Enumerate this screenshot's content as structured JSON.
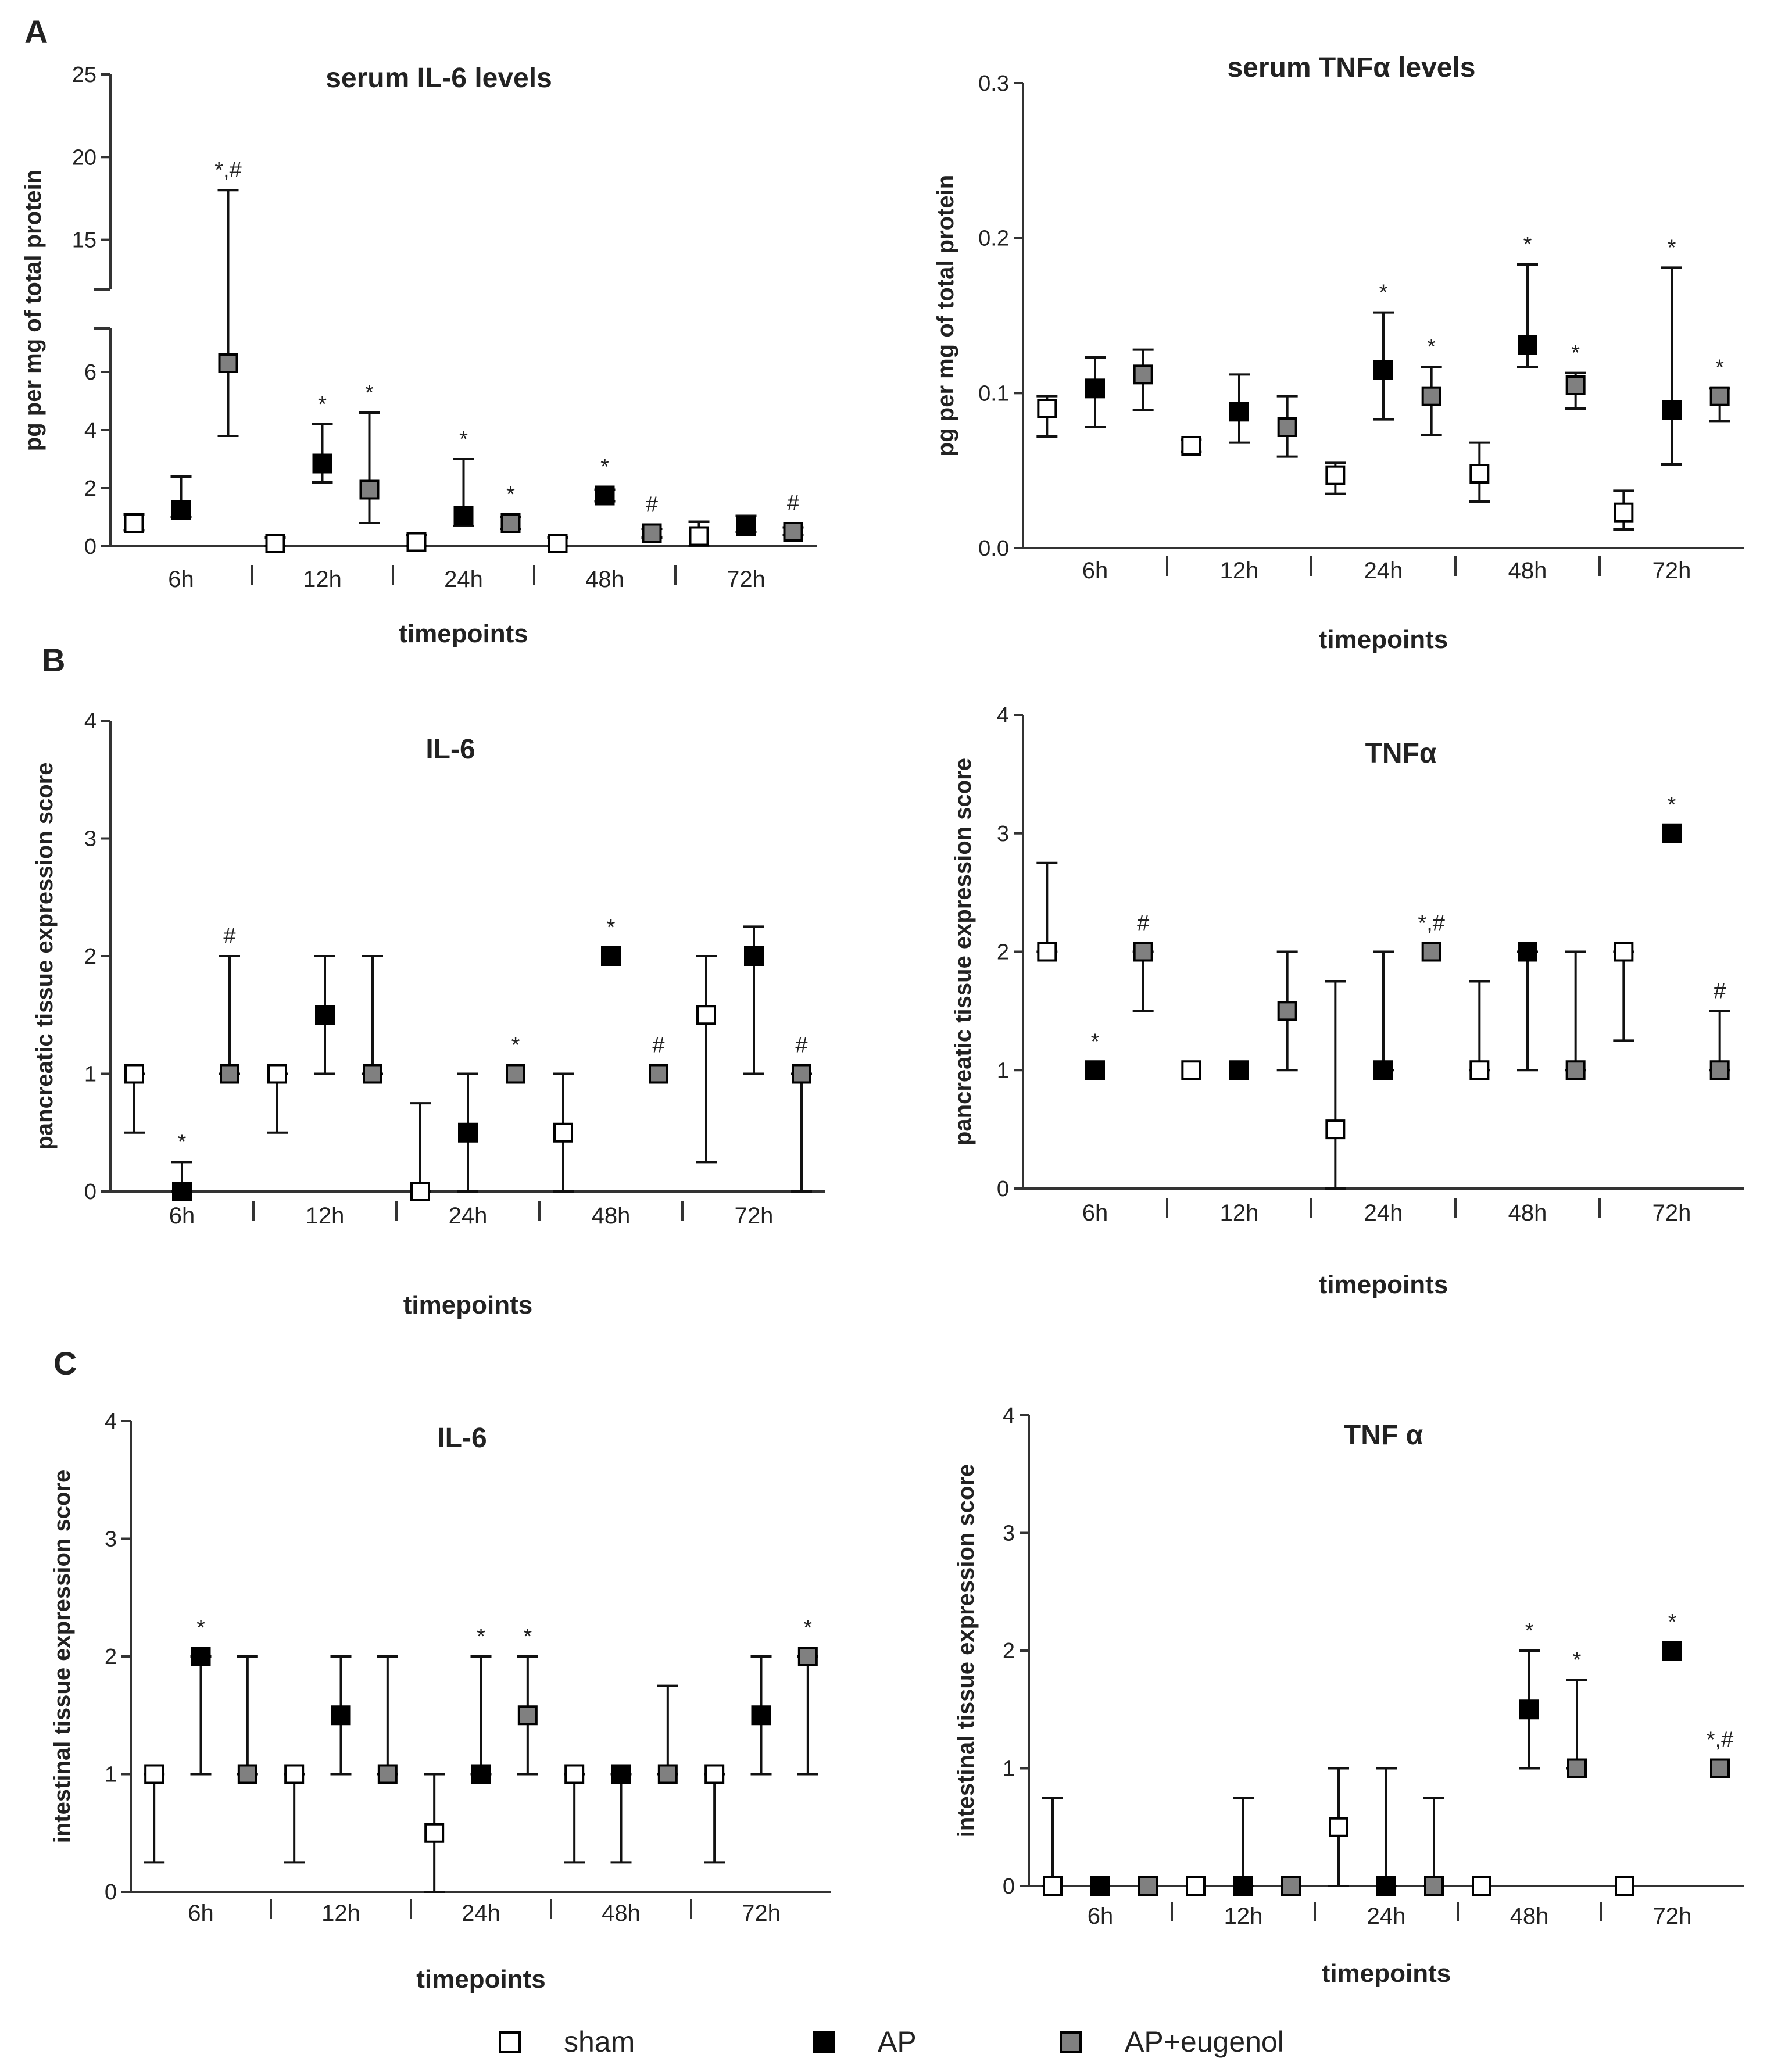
{
  "figure": {
    "panel_letters": [
      "A",
      "B",
      "C"
    ],
    "legend": {
      "entries": [
        {
          "label": "sham",
          "color": "#ffffff"
        },
        {
          "label": "AP",
          "color": "#000000"
        },
        {
          "label": "AP+eugenol",
          "color": "#808080"
        }
      ]
    }
  },
  "chart_data": [
    {
      "type": "scatter",
      "title": "serum IL-6 levels",
      "ylabel": "pg per mg of total protein",
      "xlabel": "timepoints",
      "categories": [
        "6h",
        "12h",
        "24h",
        "48h",
        "72h"
      ],
      "ylim": [
        0,
        25
      ],
      "axis_break": {
        "lower": [
          0,
          7.5
        ],
        "upper": [
          12,
          25
        ]
      },
      "yticks_lower": [
        "0",
        "2",
        "4",
        "6"
      ],
      "yticks_upper": [
        "15",
        "20",
        "25"
      ],
      "series": [
        {
          "name": "sham",
          "color": "#ffffff",
          "values": [
            0.8,
            0.1,
            0.15,
            0.1,
            0.35
          ],
          "error_low": [
            0.55,
            0.0,
            0.0,
            0.0,
            0.0
          ],
          "error_high": [
            1.1,
            0.3,
            0.4,
            0.3,
            0.85
          ],
          "annotations": [
            "",
            "",
            "",
            "",
            ""
          ]
        },
        {
          "name": "AP",
          "color": "#000000",
          "values": [
            1.25,
            2.85,
            1.05,
            1.75,
            0.7
          ],
          "error_low": [
            1.0,
            2.2,
            0.7,
            1.55,
            0.5
          ],
          "error_high": [
            2.4,
            4.2,
            3.0,
            1.95,
            1.05
          ],
          "annotations": [
            "",
            "*",
            "*",
            "*",
            ""
          ]
        },
        {
          "name": "AP+eugenol",
          "color": "#808080",
          "values": [
            6.3,
            1.95,
            0.8,
            0.45,
            0.5
          ],
          "error_low": [
            3.8,
            0.8,
            0.6,
            0.3,
            0.4
          ],
          "error_high": [
            18.0,
            4.6,
            1.0,
            0.6,
            0.65
          ],
          "annotations": [
            "*,#",
            "*",
            "*",
            "#",
            "#"
          ]
        }
      ]
    },
    {
      "type": "scatter",
      "title": "serum TNFα levels",
      "ylabel": "pg per mg of total protein",
      "xlabel": "timepoints",
      "categories": [
        "6h",
        "12h",
        "24h",
        "48h",
        "72h"
      ],
      "ylim": [
        0,
        0.3
      ],
      "yticks": [
        "0.0",
        "0.1",
        "0.2",
        "0.3"
      ],
      "series": [
        {
          "name": "sham",
          "color": "#ffffff",
          "values": [
            0.09,
            0.066,
            0.047,
            0.048,
            0.023
          ],
          "error_low": [
            0.072,
            0.062,
            0.035,
            0.03,
            0.012
          ],
          "error_high": [
            0.098,
            0.07,
            0.055,
            0.068,
            0.037
          ],
          "annotations": [
            "",
            "",
            "",
            "",
            ""
          ]
        },
        {
          "name": "AP",
          "color": "#000000",
          "values": [
            0.103,
            0.088,
            0.115,
            0.131,
            0.089
          ],
          "error_low": [
            0.078,
            0.068,
            0.083,
            0.117,
            0.054
          ],
          "error_high": [
            0.123,
            0.112,
            0.152,
            0.183,
            0.181
          ],
          "annotations": [
            "",
            "",
            "*",
            "*",
            "*"
          ]
        },
        {
          "name": "AP+eugenol",
          "color": "#808080",
          "values": [
            0.112,
            0.078,
            0.098,
            0.105,
            0.098
          ],
          "error_low": [
            0.089,
            0.059,
            0.073,
            0.09,
            0.082
          ],
          "error_high": [
            0.128,
            0.098,
            0.117,
            0.113,
            0.103
          ],
          "annotations": [
            "",
            "",
            "*",
            "*",
            "*"
          ]
        }
      ]
    },
    {
      "type": "scatter",
      "title": "IL-6",
      "ylabel": "pancreatic tissue expression score",
      "xlabel": "timepoints",
      "categories": [
        "6h",
        "12h",
        "24h",
        "48h",
        "72h"
      ],
      "ylim": [
        0,
        4
      ],
      "yticks": [
        "0",
        "1",
        "2",
        "3",
        "4"
      ],
      "series": [
        {
          "name": "sham",
          "color": "#ffffff",
          "values": [
            1,
            1,
            0,
            0.5,
            1.5
          ],
          "error_low": [
            0.5,
            0.5,
            0,
            0,
            0.25
          ],
          "error_high": [
            1,
            1,
            0.75,
            1,
            2
          ],
          "annotations": [
            "",
            "",
            "",
            "",
            ""
          ]
        },
        {
          "name": "AP",
          "color": "#000000",
          "values": [
            0,
            1.5,
            0.5,
            2,
            2
          ],
          "error_low": [
            0,
            1,
            0,
            2,
            1
          ],
          "error_high": [
            0.25,
            2,
            1,
            2,
            2.25
          ],
          "annotations": [
            "*",
            "",
            "",
            "*",
            ""
          ]
        },
        {
          "name": "AP+eugenol",
          "color": "#808080",
          "values": [
            1,
            1,
            1,
            1,
            1
          ],
          "error_low": [
            1,
            1,
            1,
            1,
            0
          ],
          "error_high": [
            2,
            2,
            1,
            1,
            1
          ],
          "annotations": [
            "#",
            "",
            "*",
            "#",
            "#"
          ]
        }
      ]
    },
    {
      "type": "scatter",
      "title": "TNFα",
      "ylabel": "pancreatic tissue expression score",
      "xlabel": "timepoints",
      "categories": [
        "6h",
        "12h",
        "24h",
        "48h",
        "72h"
      ],
      "ylim": [
        0,
        4
      ],
      "yticks": [
        "0",
        "1",
        "2",
        "3",
        "4"
      ],
      "series": [
        {
          "name": "sham",
          "color": "#ffffff",
          "values": [
            2,
            1,
            0.5,
            1,
            2
          ],
          "error_low": [
            2,
            1,
            0,
            1,
            1.25
          ],
          "error_high": [
            2.75,
            1,
            1.75,
            1.75,
            2
          ],
          "annotations": [
            "",
            "",
            "",
            "",
            ""
          ]
        },
        {
          "name": "AP",
          "color": "#000000",
          "values": [
            1,
            1,
            1,
            2,
            3
          ],
          "error_low": [
            1,
            1,
            1,
            1,
            3
          ],
          "error_high": [
            1,
            1,
            2,
            2,
            3
          ],
          "annotations": [
            "*",
            "",
            "",
            "",
            "*"
          ]
        },
        {
          "name": "AP+eugenol",
          "color": "#808080",
          "values": [
            2,
            1.5,
            2,
            1,
            1
          ],
          "error_low": [
            1.5,
            1,
            2,
            1,
            1
          ],
          "error_high": [
            2,
            2,
            2,
            2,
            1.5
          ],
          "annotations": [
            "#",
            "",
            "*,#",
            "",
            "#"
          ]
        }
      ]
    },
    {
      "type": "scatter",
      "title": "IL-6",
      "ylabel": "intestinal tissue expression score",
      "xlabel": "timepoints",
      "categories": [
        "6h",
        "12h",
        "24h",
        "48h",
        "72h"
      ],
      "ylim": [
        0,
        4
      ],
      "yticks": [
        "0",
        "1",
        "2",
        "3",
        "4"
      ],
      "series": [
        {
          "name": "sham",
          "color": "#ffffff",
          "values": [
            1,
            1,
            0.5,
            1,
            1
          ],
          "error_low": [
            0.25,
            0.25,
            0,
            0.25,
            0.25
          ],
          "error_high": [
            1,
            1,
            1,
            1,
            1
          ],
          "annotations": [
            "",
            "",
            "",
            "",
            ""
          ]
        },
        {
          "name": "AP",
          "color": "#000000",
          "values": [
            2,
            1.5,
            1,
            1,
            1.5
          ],
          "error_low": [
            1,
            1,
            1,
            0.25,
            1
          ],
          "error_high": [
            2,
            2,
            2,
            1,
            2
          ],
          "annotations": [
            "*",
            "",
            "*",
            "",
            ""
          ]
        },
        {
          "name": "AP+eugenol",
          "color": "#808080",
          "values": [
            1,
            1,
            1.5,
            1,
            2
          ],
          "error_low": [
            1,
            1,
            1,
            1,
            1
          ],
          "error_high": [
            2,
            2,
            2,
            1.75,
            2
          ],
          "annotations": [
            "",
            "",
            "*",
            "",
            "*"
          ]
        }
      ]
    },
    {
      "type": "scatter",
      "title": "TNF α",
      "ylabel": "intestinal tissue expression score",
      "xlabel": "timepoints",
      "categories": [
        "6h",
        "12h",
        "24h",
        "48h",
        "72h"
      ],
      "ylim": [
        0,
        4
      ],
      "yticks": [
        "0",
        "1",
        "2",
        "3",
        "4"
      ],
      "series": [
        {
          "name": "sham",
          "color": "#ffffff",
          "values": [
            0,
            0,
            0.5,
            0,
            0
          ],
          "error_low": [
            0,
            0,
            0,
            0,
            0
          ],
          "error_high": [
            0.75,
            0,
            1,
            0,
            0
          ],
          "annotations": [
            "",
            "",
            "",
            "",
            ""
          ]
        },
        {
          "name": "AP",
          "color": "#000000",
          "values": [
            0,
            0,
            0,
            1.5,
            2
          ],
          "error_low": [
            0,
            0,
            0,
            1,
            2
          ],
          "error_high": [
            0,
            0.75,
            1,
            2,
            2
          ],
          "annotations": [
            "",
            "",
            "",
            "*",
            "*"
          ]
        },
        {
          "name": "AP+eugenol",
          "color": "#808080",
          "values": [
            0,
            0,
            0,
            1,
            1
          ],
          "error_low": [
            0,
            0,
            0,
            1,
            1
          ],
          "error_high": [
            0,
            0,
            0.75,
            1.75,
            1
          ],
          "annotations": [
            "",
            "",
            "",
            "*",
            "*,#"
          ]
        }
      ]
    }
  ]
}
